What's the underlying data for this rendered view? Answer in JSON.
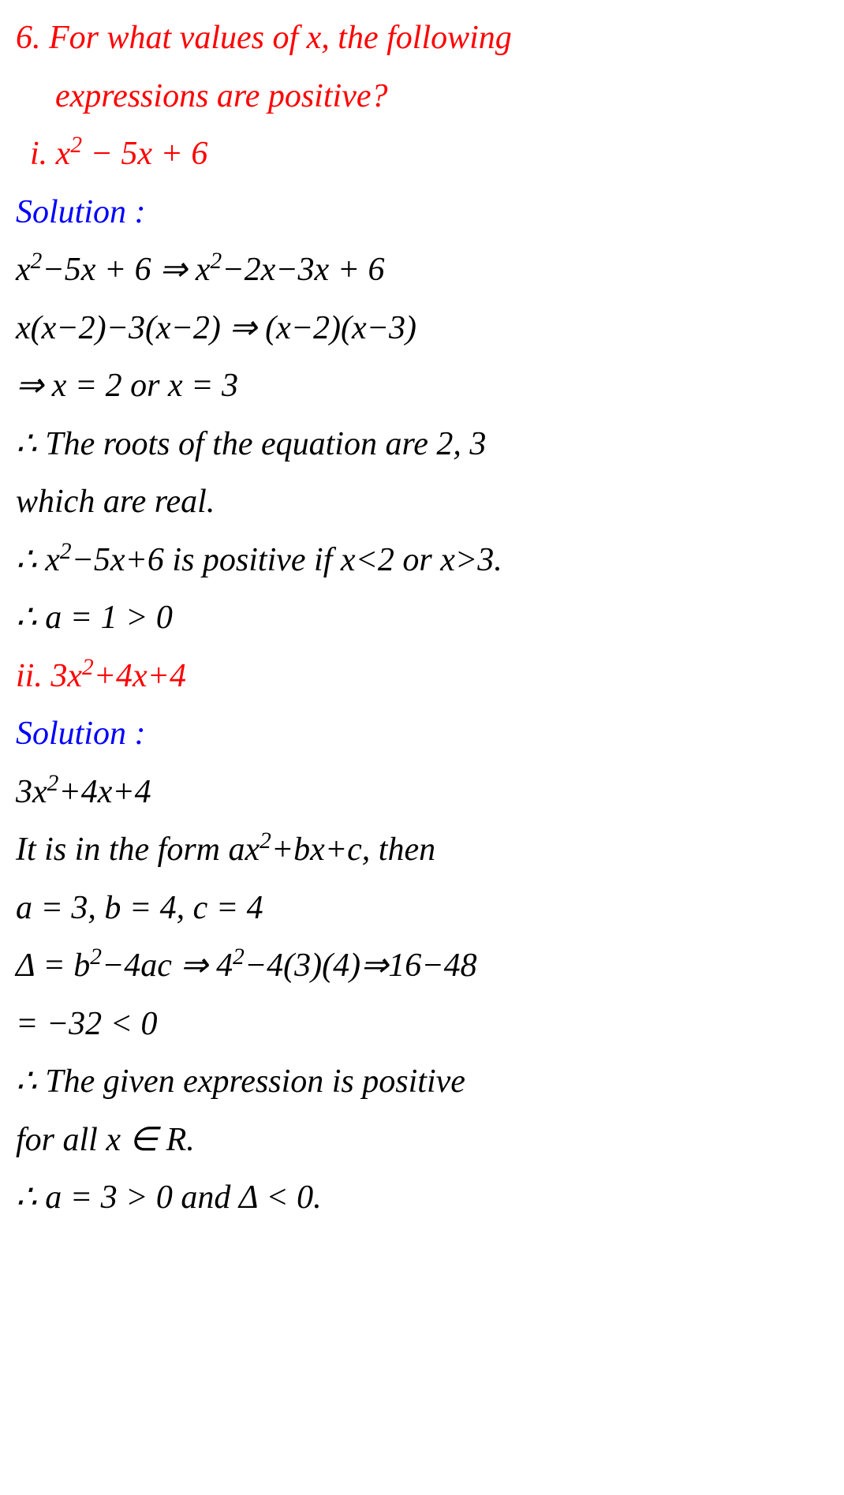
{
  "q": {
    "l1": "6. For what values of x, the following",
    "l2": "expressions are positive?"
  },
  "i": {
    "head_pre": "i. x",
    "head_exp": "2",
    "head_post": " − 5x + 6",
    "sol": "Solution :",
    "s1_pre": "x",
    "s1_exp": "2",
    "s1_mid": "−5x + 6 ⇒ x",
    "s1_exp2": "2",
    "s1_post": "−2x−3x + 6",
    "s2": "x(x−2)−3(x−2) ⇒ (x−2)(x−3)",
    "s3": "⇒ x = 2 or x = 3",
    "s4": "∴ The roots of the equation are 2, 3",
    "s5": "which are real.",
    "s6_pre": "∴ x",
    "s6_exp": "2",
    "s6_post": "−5x+6 is positive if x<2 or x>3.",
    "s7": "∴ a = 1 > 0"
  },
  "ii": {
    "head_pre": "ii. 3x",
    "head_exp": "2",
    "head_post": "+4x+4",
    "sol": "Solution :",
    "s1_pre": "3x",
    "s1_exp": "2",
    "s1_post": "+4x+4",
    "s2_pre": "It is in the form ax",
    "s2_exp": "2",
    "s2_post": "+bx+c, then",
    "s3": "a = 3,  b = 4,  c = 4",
    "s4_pre": "Δ = b",
    "s4_exp": "2",
    "s4_mid": "−4ac ⇒ 4",
    "s4_exp2": "2",
    "s4_post": "−4(3)(4)⇒16−48",
    "s5": "= −32 < 0",
    "s6": "∴ The given expression is positive",
    "s7": "for all x ∈ R.",
    "s8": "∴  a = 3 > 0 and Δ < 0."
  }
}
